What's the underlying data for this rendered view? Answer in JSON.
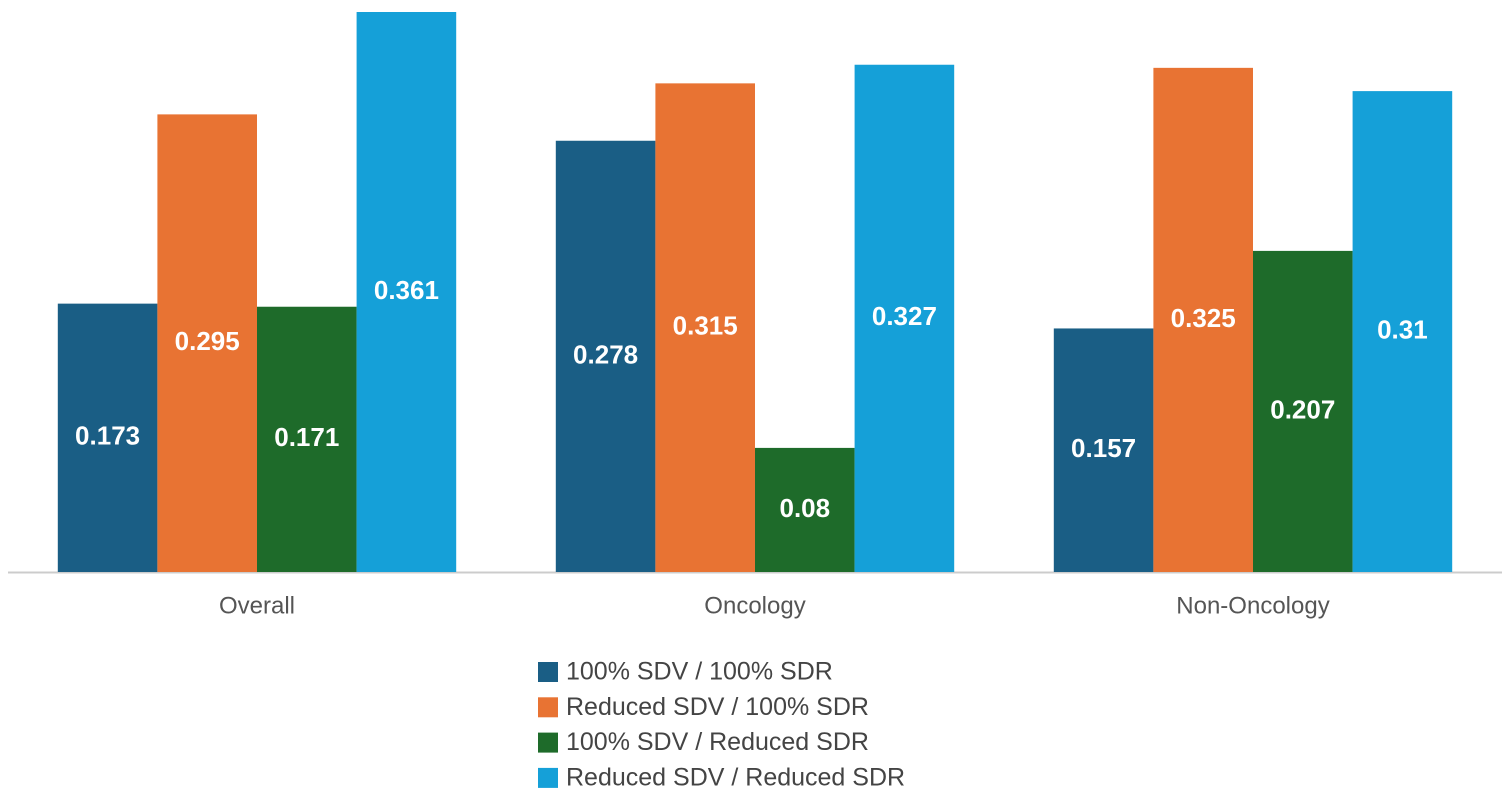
{
  "chart_data": {
    "type": "bar",
    "categories": [
      "Overall",
      "Oncology",
      "Non-Oncology"
    ],
    "series": [
      {
        "name": "100% SDV / 100% SDR",
        "color": "#1a5e85",
        "values": [
          0.173,
          0.278,
          0.157
        ]
      },
      {
        "name": "Reduced SDV / 100% SDR",
        "color": "#e87333",
        "values": [
          0.295,
          0.315,
          0.325
        ]
      },
      {
        "name": "100% SDV / Reduced SDR",
        "color": "#1e6b2a",
        "values": [
          0.171,
          0.08,
          0.207
        ]
      },
      {
        "name": "Reduced SDV / Reduced SDR",
        "color": "#15a0d8",
        "values": [
          0.361,
          0.327,
          0.31
        ]
      }
    ]
  }
}
